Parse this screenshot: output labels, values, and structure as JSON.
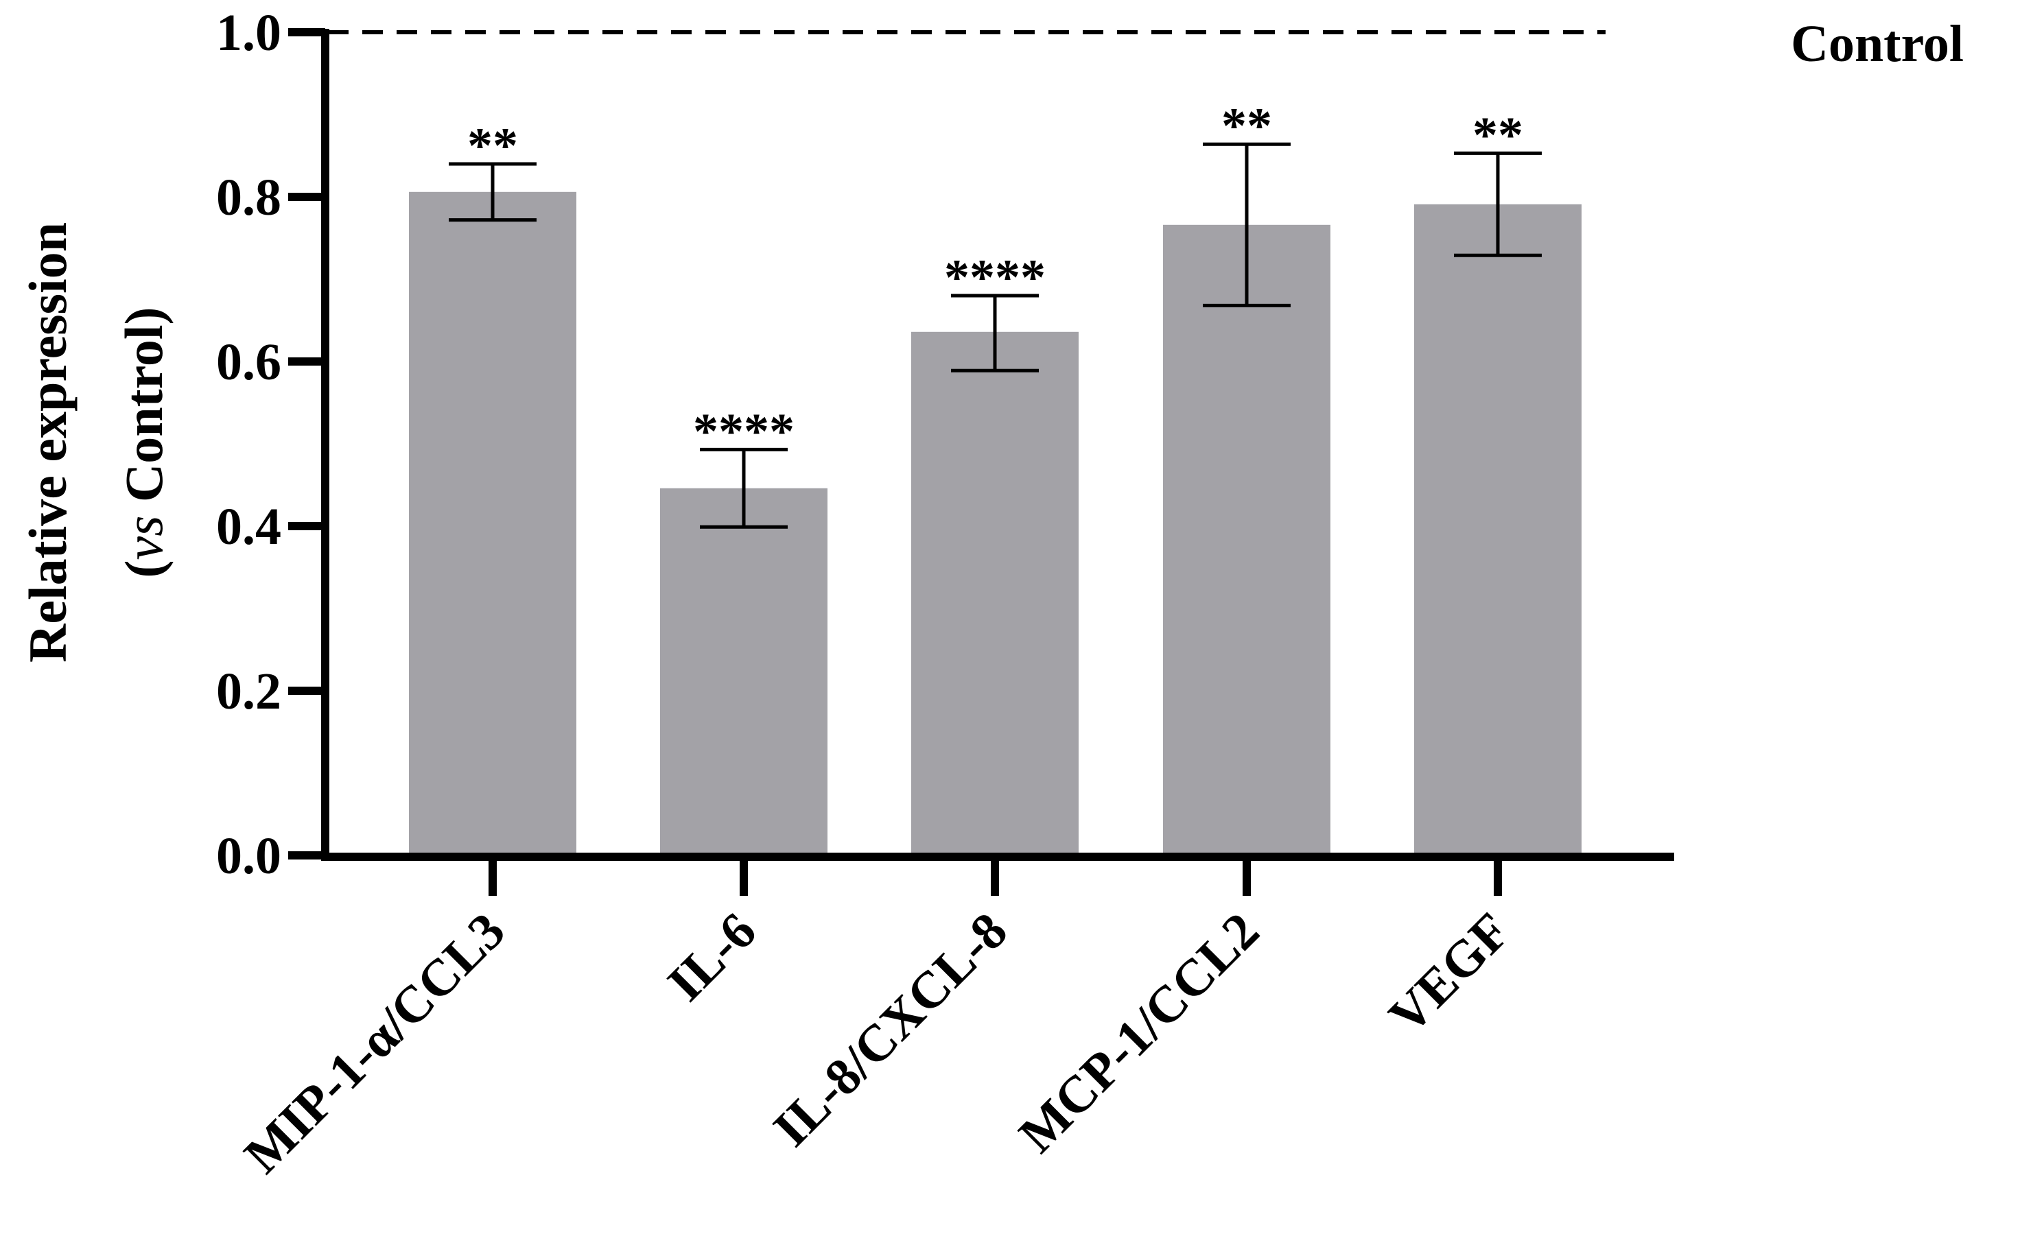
{
  "chart_data": {
    "type": "bar",
    "title": "",
    "xlabel": "",
    "ylabel_line1": "Relative expression",
    "ylabel_line2_open": "(",
    "ylabel_line2_italic": "vs",
    "ylabel_line2_rest": " Control)",
    "ylim": [
      0,
      1.0
    ],
    "yticks": [
      "0.0",
      "0.2",
      "0.4",
      "0.6",
      "0.8",
      "1.0"
    ],
    "ytick_values": [
      0,
      0.2,
      0.4,
      0.6,
      0.8,
      1.0
    ],
    "categories": [
      "MIP-1-α/CCL3",
      "IL-6",
      "IL-8/CXCL-8",
      "MCP-1/CCL2",
      "VEGF"
    ],
    "values": [
      0.806,
      0.446,
      0.636,
      0.766,
      0.791
    ],
    "error_low": [
      0.772,
      0.399,
      0.589,
      0.668,
      0.729
    ],
    "error_high": [
      0.84,
      0.493,
      0.68,
      0.864,
      0.853
    ],
    "significance": [
      "**",
      "****",
      "****",
      "**",
      "**"
    ],
    "reference_line": {
      "value": 1.0,
      "label": "Control",
      "style": "dashed"
    },
    "bar_color": "#a3a2a7",
    "axis_color": "#000000"
  }
}
